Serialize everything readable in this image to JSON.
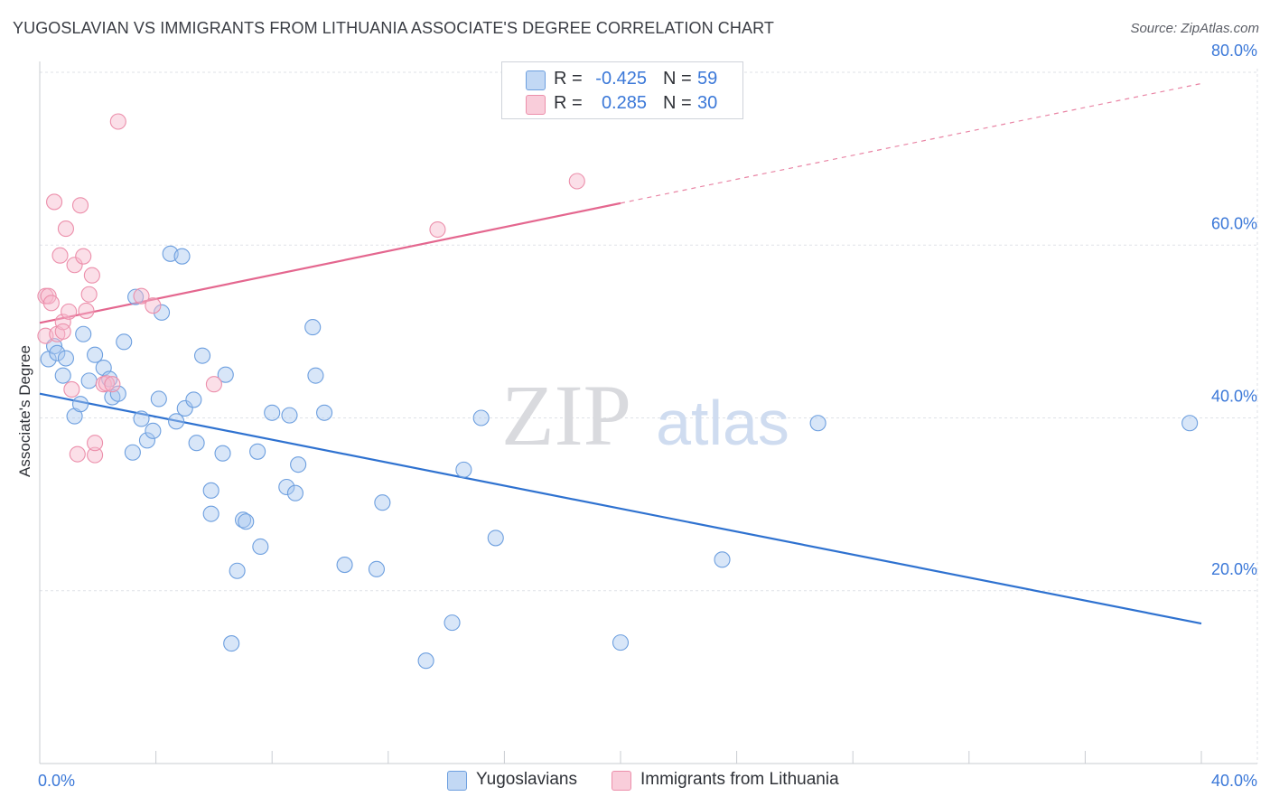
{
  "header": {
    "title": "YUGOSLAVIAN VS IMMIGRANTS FROM LITHUANIA ASSOCIATE'S DEGREE CORRELATION CHART",
    "source": "Source: ZipAtlas.com"
  },
  "legend": {
    "r_label": "R =",
    "n_label": "N =",
    "rows": [
      {
        "r": "-0.425",
        "n": "59"
      },
      {
        "r": "0.285",
        "n": "30"
      }
    ]
  },
  "bottom_legend": [
    "Yugoslavians",
    "Immigrants from Lithuania"
  ],
  "watermark": {
    "zip": "ZIP",
    "atlas": "atlas"
  },
  "chart_data": {
    "type": "scatter",
    "title": "YUGOSLAVIAN VS IMMIGRANTS FROM LITHUANIA ASSOCIATE'S DEGREE CORRELATION CHART",
    "xlabel": "",
    "ylabel": "Associate's Degree",
    "xlim": [
      0,
      40
    ],
    "ylim": [
      0,
      80
    ],
    "x_tick_labels": [
      "0.0%",
      "40.0%"
    ],
    "y_ticks": [
      20,
      40,
      60,
      80
    ],
    "y_tick_labels": [
      "20.0%",
      "40.0%",
      "60.0%",
      "80.0%"
    ],
    "grid": true,
    "legend_position": "top-center",
    "colors": {
      "yugoslavians_fill": "#a9c8f0",
      "yugoslavians_stroke": "#6d9fdf",
      "yugoslavians_line": "#2f72d0",
      "lithuania_fill": "#f6b8cb",
      "lithuania_stroke": "#ec8fab",
      "lithuania_line": "#e4678f",
      "axis_text": "#3b78d8"
    },
    "series": [
      {
        "name": "Yugoslavians",
        "r": -0.425,
        "n": 59,
        "trend": {
          "x0": 0,
          "y0": 42.8,
          "x1": 40,
          "y1": 16.2,
          "dashed_from": null
        },
        "points": [
          [
            0.3,
            46.8
          ],
          [
            0.5,
            48.3
          ],
          [
            0.6,
            47.5
          ],
          [
            0.8,
            44.9
          ],
          [
            0.9,
            46.9
          ],
          [
            1.2,
            40.2
          ],
          [
            1.4,
            41.6
          ],
          [
            1.5,
            49.7
          ],
          [
            1.7,
            44.3
          ],
          [
            1.9,
            47.3
          ],
          [
            2.2,
            45.8
          ],
          [
            2.4,
            44.5
          ],
          [
            2.5,
            42.4
          ],
          [
            2.7,
            42.8
          ],
          [
            2.9,
            48.8
          ],
          [
            3.2,
            36.0
          ],
          [
            3.3,
            54.0
          ],
          [
            3.5,
            39.9
          ],
          [
            3.7,
            37.4
          ],
          [
            3.9,
            38.5
          ],
          [
            4.1,
            42.2
          ],
          [
            4.2,
            52.2
          ],
          [
            4.5,
            59.0
          ],
          [
            4.7,
            39.6
          ],
          [
            4.9,
            58.7
          ],
          [
            5.0,
            41.1
          ],
          [
            5.3,
            42.1
          ],
          [
            5.4,
            37.1
          ],
          [
            5.6,
            47.2
          ],
          [
            5.9,
            31.6
          ],
          [
            5.9,
            28.9
          ],
          [
            6.3,
            35.9
          ],
          [
            6.4,
            45.0
          ],
          [
            6.6,
            13.9
          ],
          [
            6.8,
            22.3
          ],
          [
            7.0,
            28.2
          ],
          [
            7.1,
            28.0
          ],
          [
            7.5,
            36.1
          ],
          [
            7.6,
            25.1
          ],
          [
            8.0,
            40.6
          ],
          [
            8.5,
            32.0
          ],
          [
            8.6,
            40.3
          ],
          [
            8.8,
            31.3
          ],
          [
            8.9,
            34.6
          ],
          [
            9.4,
            50.5
          ],
          [
            9.5,
            44.9
          ],
          [
            9.8,
            40.6
          ],
          [
            10.5,
            23.0
          ],
          [
            11.6,
            22.5
          ],
          [
            11.8,
            30.2
          ],
          [
            13.3,
            11.9
          ],
          [
            14.2,
            16.3
          ],
          [
            14.6,
            34.0
          ],
          [
            15.2,
            40.0
          ],
          [
            15.7,
            26.1
          ],
          [
            20.0,
            14.0
          ],
          [
            23.5,
            23.6
          ],
          [
            26.8,
            39.4
          ],
          [
            39.6,
            39.4
          ]
        ]
      },
      {
        "name": "Immigrants from Lithuania",
        "r": 0.285,
        "n": 30,
        "trend": {
          "x0": 0,
          "y0": 51.0,
          "x1": 40,
          "y1": 78.7,
          "dashed_from": 20.0
        },
        "points": [
          [
            0.2,
            49.5
          ],
          [
            0.2,
            54.1
          ],
          [
            0.3,
            54.1
          ],
          [
            0.4,
            53.3
          ],
          [
            0.5,
            65.0
          ],
          [
            0.6,
            49.7
          ],
          [
            0.7,
            58.8
          ],
          [
            0.8,
            51.1
          ],
          [
            0.8,
            50.0
          ],
          [
            0.9,
            61.9
          ],
          [
            1.0,
            52.3
          ],
          [
            1.1,
            43.3
          ],
          [
            1.2,
            57.7
          ],
          [
            1.3,
            35.8
          ],
          [
            1.4,
            64.6
          ],
          [
            1.5,
            58.7
          ],
          [
            1.6,
            52.4
          ],
          [
            1.7,
            54.3
          ],
          [
            1.8,
            56.5
          ],
          [
            1.9,
            35.7
          ],
          [
            1.9,
            37.1
          ],
          [
            2.2,
            43.9
          ],
          [
            2.3,
            44.0
          ],
          [
            2.5,
            43.9
          ],
          [
            2.7,
            74.3
          ],
          [
            3.5,
            54.1
          ],
          [
            3.9,
            53.0
          ],
          [
            6.0,
            43.9
          ],
          [
            13.7,
            61.8
          ],
          [
            18.5,
            67.4
          ]
        ]
      }
    ]
  }
}
